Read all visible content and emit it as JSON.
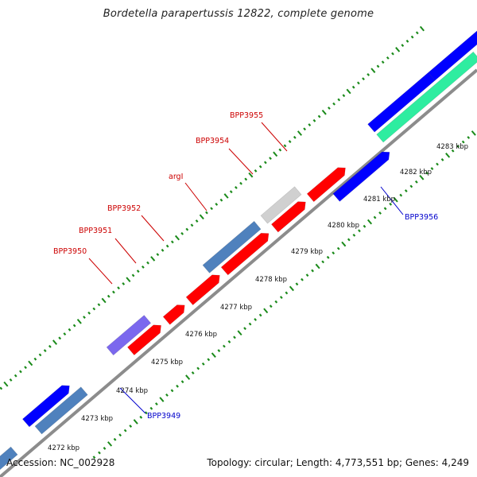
{
  "title": "Bordetella parapertussis 12822, complete genome",
  "footer": {
    "accession": "Accession: NC_002928",
    "topology": "Topology: circular; Length: 4,773,551 bp; Genes: 4,249"
  },
  "colors": {
    "backbone": "#8c8c8c",
    "tick": "#1a8a1a",
    "red_gene": "#ff0000",
    "blue_gene": "#0000ff",
    "steel_gene": "#4f81bd",
    "purple_gene": "#7b68ee",
    "grey_gene": "#d0d0d0",
    "teal_gene": "#2eeda0",
    "red_label": "#cc0000",
    "blue_label": "#0000cc"
  },
  "scale": {
    "kbp_labels": [
      "4272 kbp",
      "4273 kbp",
      "4274 kbp",
      "4275 kbp",
      "4276 kbp",
      "4277 kbp",
      "4278 kbp",
      "4279 kbp",
      "4280 kbp",
      "4281 kbp",
      "4282 kbp",
      "4283 kbp"
    ]
  },
  "genes": {
    "red": [
      {
        "label": "BPP3950",
        "color": "red_gene",
        "strand": "+",
        "lane": "fwd1"
      },
      {
        "label": "BPP3951",
        "color": "red_gene",
        "strand": "+",
        "lane": "fwd1"
      },
      {
        "label": "BPP3952",
        "color": "red_gene",
        "strand": "+",
        "lane": "fwd1"
      },
      {
        "label": "argI",
        "color": "red_gene",
        "strand": "+",
        "lane": "fwd1"
      },
      {
        "label": "BPP3954",
        "color": "red_gene",
        "strand": "+",
        "lane": "fwd1"
      },
      {
        "label": "BPP3955",
        "color": "red_gene",
        "strand": "+",
        "lane": "fwd1"
      }
    ],
    "blue": [
      {
        "label": "BPP3949",
        "color": "blue_gene",
        "strand": "+",
        "lane": "fwd2"
      },
      {
        "label": "BPP3956",
        "color": "blue_gene",
        "strand": "+",
        "lane": "fwd2"
      }
    ]
  }
}
